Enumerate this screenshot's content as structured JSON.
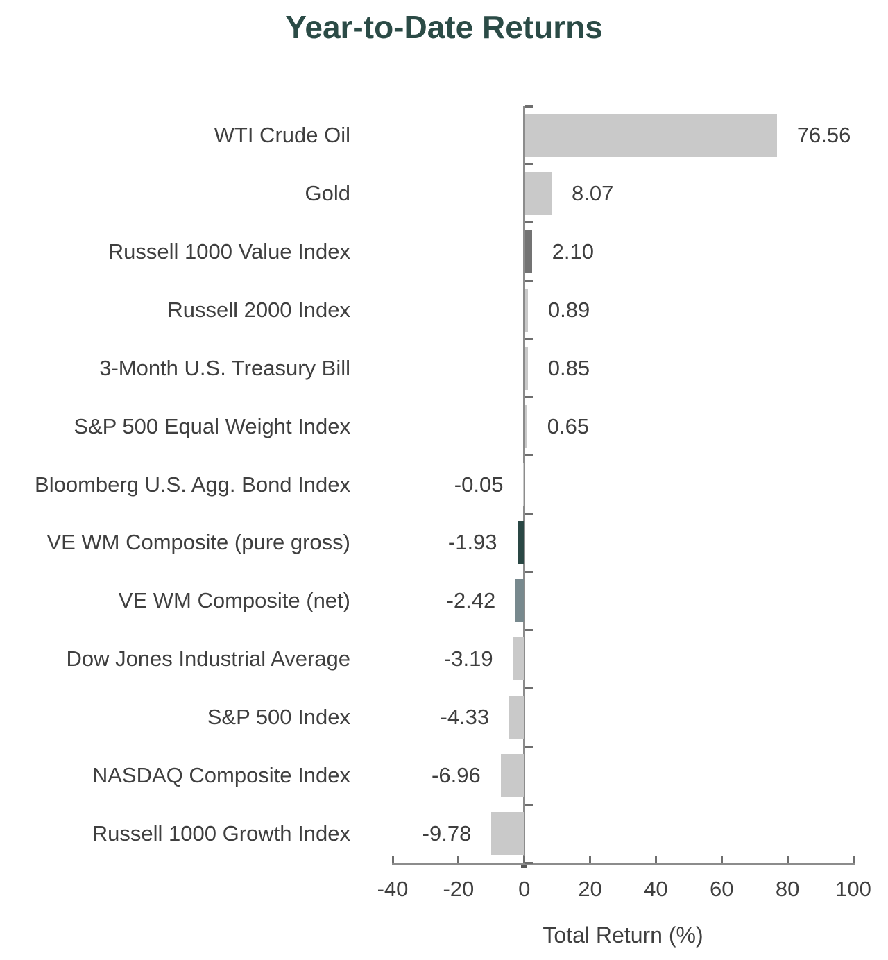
{
  "chart_data": {
    "type": "bar",
    "orientation": "horizontal",
    "title": "Year-to-Date Returns",
    "xlabel": "Total Return (%)",
    "xlim": [
      -40,
      100
    ],
    "xticks": [
      "-40",
      "-20",
      "0",
      "20",
      "40",
      "60",
      "80",
      "100"
    ],
    "xtick_values": [
      -40,
      -20,
      0,
      20,
      40,
      60,
      80,
      100
    ],
    "grid": false,
    "legend": "none",
    "categories": [
      "WTI Crude Oil",
      "Gold",
      "Russell 1000 Value Index",
      "Russell 2000 Index",
      "3-Month U.S. Treasury Bill",
      "S&P 500 Equal Weight Index",
      "Bloomberg U.S. Agg. Bond Index",
      "VE WM Composite (pure gross)",
      "VE WM Composite (net)",
      "Dow Jones Industrial Average",
      "S&P 500 Index",
      "NASDAQ Composite Index",
      "Russell 1000 Growth Index"
    ],
    "values": [
      76.56,
      8.07,
      2.1,
      0.89,
      0.85,
      0.65,
      -0.05,
      -1.93,
      -2.42,
      -3.19,
      -4.33,
      -6.96,
      -9.78
    ],
    "value_labels": [
      "76.56",
      "8.07",
      "2.10",
      "0.89",
      "0.85",
      "0.65",
      "-0.05",
      "-1.93",
      "-2.42",
      "-3.19",
      "-4.33",
      "-6.96",
      "-9.78"
    ],
    "bar_colors": [
      "#c9c9c9",
      "#c9c9c9",
      "#737373",
      "#c9c9c9",
      "#c9c9c9",
      "#c9c9c9",
      "#c9c9c9",
      "#2a4744",
      "#78898e",
      "#c9c9c9",
      "#c9c9c9",
      "#c9c9c9",
      "#c9c9c9"
    ],
    "colors": {
      "default_bar": "#c9c9c9",
      "medium_gray_bar": "#737373",
      "dark_teal_bar": "#2a4744",
      "slate_bar": "#78898e",
      "axis_line": "#8c8c8c",
      "tick_mark": "#6e6e6e",
      "zero_tick": "#595959",
      "label_text": "#3f3f3f",
      "title_text": "#2b4b46"
    }
  }
}
